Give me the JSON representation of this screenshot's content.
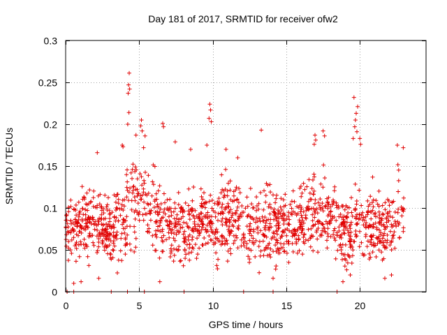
{
  "chart_data": {
    "type": "scatter",
    "title": "Day 181 of 2017, SRMTID for receiver ofw2",
    "xlabel": "GPS time / hours",
    "ylabel": "SRMTID / TECUs",
    "xlim": [
      0,
      24.5
    ],
    "ylim": [
      0,
      0.3
    ],
    "x_ticks": [
      0,
      5,
      10,
      15,
      20
    ],
    "x_tick_labels": [
      "0",
      "5",
      "10",
      "15",
      "20"
    ],
    "y_ticks": [
      0,
      0.05,
      0.1,
      0.15,
      0.2,
      0.25,
      0.3
    ],
    "y_tick_labels": [
      "0",
      "0.05",
      "0.1",
      "0.15",
      "0.2",
      "0.25",
      "0.3"
    ],
    "grid": true,
    "marker": "plus",
    "series_color": "#e00000",
    "zero_points_x": [
      0.1,
      0.55,
      3.1,
      4.2,
      5.35,
      8.05,
      12.1,
      14.1,
      18.45
    ],
    "envelope": [
      {
        "x": 0.0,
        "center": 0.075,
        "spread": 0.035
      },
      {
        "x": 1.5,
        "center": 0.085,
        "spread": 0.035
      },
      {
        "x": 3.0,
        "center": 0.07,
        "spread": 0.03
      },
      {
        "x": 4.0,
        "center": 0.09,
        "spread": 0.045
      },
      {
        "x": 5.0,
        "center": 0.115,
        "spread": 0.05
      },
      {
        "x": 6.5,
        "center": 0.085,
        "spread": 0.04
      },
      {
        "x": 8.0,
        "center": 0.075,
        "spread": 0.035
      },
      {
        "x": 10.0,
        "center": 0.085,
        "spread": 0.04
      },
      {
        "x": 12.0,
        "center": 0.08,
        "spread": 0.035
      },
      {
        "x": 14.0,
        "center": 0.08,
        "spread": 0.04
      },
      {
        "x": 15.5,
        "center": 0.075,
        "spread": 0.035
      },
      {
        "x": 17.5,
        "center": 0.1,
        "spread": 0.04
      },
      {
        "x": 19.0,
        "center": 0.065,
        "spread": 0.035
      },
      {
        "x": 20.0,
        "center": 0.085,
        "spread": 0.045
      },
      {
        "x": 21.5,
        "center": 0.075,
        "spread": 0.035
      },
      {
        "x": 23.0,
        "center": 0.095,
        "spread": 0.04
      }
    ],
    "highlights": [
      {
        "x": 4.32,
        "y": 0.261
      },
      {
        "x": 4.28,
        "y": 0.247
      },
      {
        "x": 4.35,
        "y": 0.242
      },
      {
        "x": 4.25,
        "y": 0.237
      },
      {
        "x": 4.3,
        "y": 0.214
      },
      {
        "x": 4.22,
        "y": 0.2
      },
      {
        "x": 5.15,
        "y": 0.205
      },
      {
        "x": 5.1,
        "y": 0.198
      },
      {
        "x": 5.2,
        "y": 0.192
      },
      {
        "x": 4.78,
        "y": 0.187
      },
      {
        "x": 5.4,
        "y": 0.186
      },
      {
        "x": 5.3,
        "y": 0.172
      },
      {
        "x": 6.6,
        "y": 0.201
      },
      {
        "x": 6.65,
        "y": 0.197
      },
      {
        "x": 7.45,
        "y": 0.179
      },
      {
        "x": 9.8,
        "y": 0.224
      },
      {
        "x": 9.85,
        "y": 0.217
      },
      {
        "x": 9.75,
        "y": 0.207
      },
      {
        "x": 9.9,
        "y": 0.203
      },
      {
        "x": 9.6,
        "y": 0.175
      },
      {
        "x": 13.3,
        "y": 0.193
      },
      {
        "x": 17.5,
        "y": 0.192
      },
      {
        "x": 17.6,
        "y": 0.186
      },
      {
        "x": 16.95,
        "y": 0.187
      },
      {
        "x": 17.0,
        "y": 0.181
      },
      {
        "x": 16.9,
        "y": 0.176
      },
      {
        "x": 19.6,
        "y": 0.232
      },
      {
        "x": 19.85,
        "y": 0.221
      },
      {
        "x": 19.75,
        "y": 0.213
      },
      {
        "x": 19.7,
        "y": 0.205
      },
      {
        "x": 19.65,
        "y": 0.197
      },
      {
        "x": 19.8,
        "y": 0.191
      },
      {
        "x": 20.0,
        "y": 0.183
      },
      {
        "x": 20.05,
        "y": 0.176
      },
      {
        "x": 19.55,
        "y": 0.183
      },
      {
        "x": 22.55,
        "y": 0.175
      },
      {
        "x": 22.95,
        "y": 0.172
      },
      {
        "x": 8.5,
        "y": 0.17
      },
      {
        "x": 10.9,
        "y": 0.17
      },
      {
        "x": 11.7,
        "y": 0.16
      },
      {
        "x": 3.85,
        "y": 0.175
      },
      {
        "x": 3.9,
        "y": 0.173
      },
      {
        "x": 2.15,
        "y": 0.166
      },
      {
        "x": 0.55,
        "y": 0.01
      },
      {
        "x": 1.05,
        "y": 0.012
      },
      {
        "x": 2.25,
        "y": 0.016
      },
      {
        "x": 6.4,
        "y": 0.012
      },
      {
        "x": 14.1,
        "y": 0.016
      },
      {
        "x": 18.85,
        "y": 0.012
      },
      {
        "x": 19.35,
        "y": 0.02
      },
      {
        "x": 21.7,
        "y": 0.016
      },
      {
        "x": 22.15,
        "y": 0.02
      }
    ],
    "random_points": 1500,
    "random_seed": 181
  }
}
